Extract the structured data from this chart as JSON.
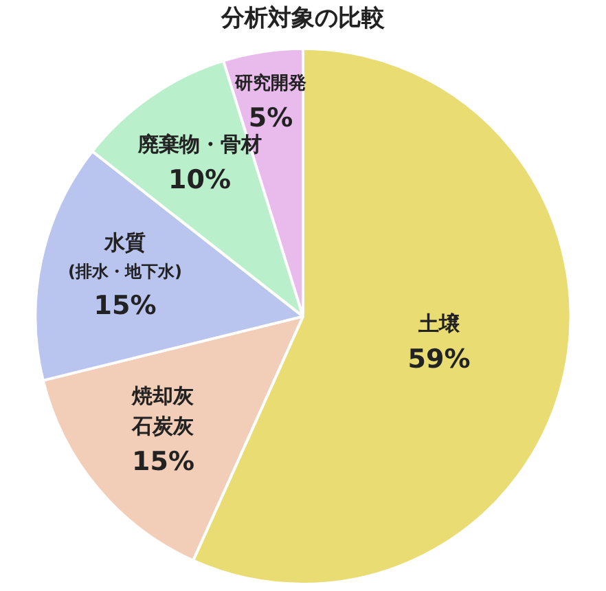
{
  "chart_data": {
    "type": "pie",
    "title": "分析対象の比較",
    "categories": [
      "土壌",
      "焼却灰石炭灰",
      "水質(排水・地下水)",
      "廃棄物・骨材",
      "研究開発"
    ],
    "values": [
      59,
      15,
      15,
      10,
      5
    ],
    "colors": [
      "#e8dc72",
      "#f2cdb7",
      "#b9c4ef",
      "#b9efcb",
      "#e9bbed"
    ],
    "value_labels": [
      "59%",
      "15%",
      "15%",
      "10%",
      "5%"
    ],
    "legend": false
  }
}
